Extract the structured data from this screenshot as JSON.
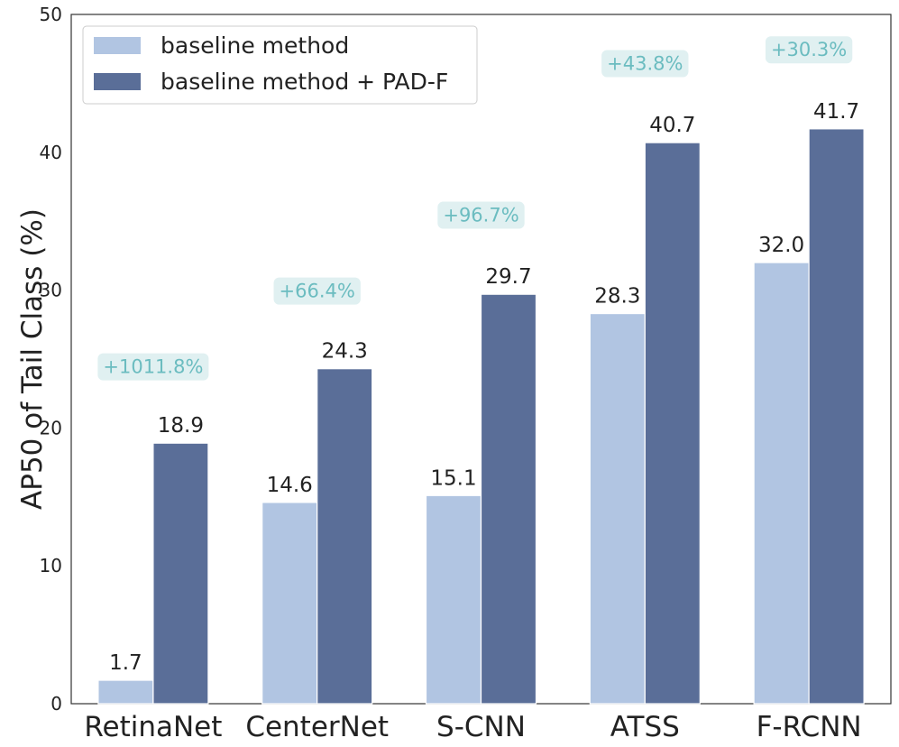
{
  "chart_data": {
    "type": "bar",
    "categories": [
      "RetinaNet",
      "CenterNet",
      "S-CNN",
      "ATSS",
      "F-RCNN"
    ],
    "series": [
      {
        "name": "baseline method",
        "values": [
          1.7,
          14.6,
          15.1,
          28.3,
          32.0
        ],
        "labels": [
          "1.7",
          "14.6",
          "15.1",
          "28.3",
          "32.0"
        ],
        "color": "#b1c5e2"
      },
      {
        "name": "baseline method + PAD-F",
        "values": [
          18.9,
          24.3,
          29.7,
          40.7,
          41.7
        ],
        "labels": [
          "18.9",
          "24.3",
          "29.7",
          "40.7",
          "41.7"
        ],
        "color": "#5a6e98"
      }
    ],
    "improvements": [
      "+1011.8%",
      "+66.4%",
      "+96.7%",
      "+43.8%",
      "+30.3%"
    ],
    "improvement_levels": [
      24.5,
      30.0,
      35.5,
      46.5,
      47.5
    ],
    "improvement_color": "#6bbcc0",
    "improvement_bg": "#e0f0f1",
    "ylabel": "AP50 of Tail Class (%)",
    "xlabel": "",
    "ylim": [
      0,
      50
    ],
    "yticks": [
      "0",
      "10",
      "20",
      "30",
      "40",
      "50"
    ],
    "grid": false,
    "legend_position": "top-left"
  }
}
